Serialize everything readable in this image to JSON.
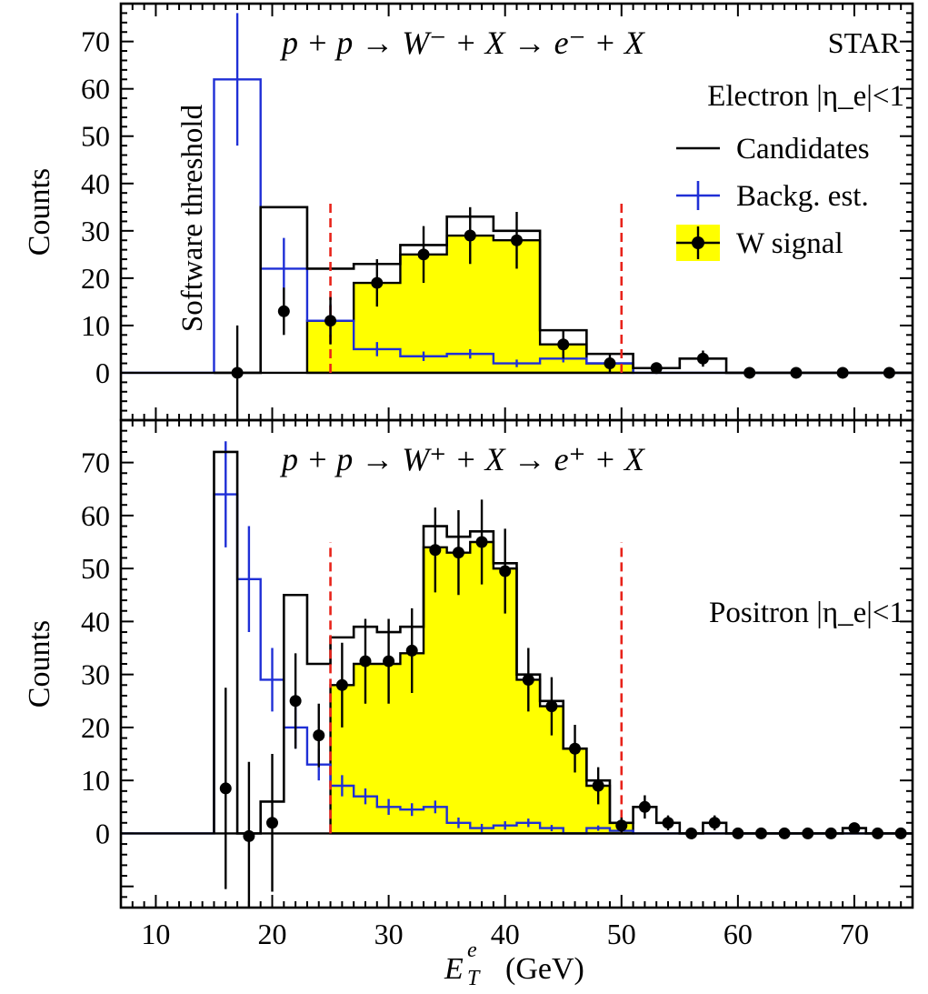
{
  "figure": {
    "xlabel_main": "E",
    "xlabel_sup": "e",
    "xlabel_sub": "T",
    "xlabel_unit": "(GeV)",
    "xticks": [
      10,
      20,
      30,
      40,
      50,
      60,
      70
    ],
    "xlim": [
      7,
      75
    ],
    "colors": {
      "candidates": "#000000",
      "background": "#1f2fd6",
      "signal_fill": "#ffff00",
      "cut_line": "#e8231a"
    },
    "cut_lines_x": [
      25,
      50
    ]
  },
  "chart_data": [
    {
      "type": "bar",
      "panel": "top",
      "process": "p + p → W⁻ + X → e⁻ + X",
      "experiment": "STAR",
      "selection": "Electron |η_e|<1",
      "ylabel": "Counts",
      "ylim": [
        -10,
        78
      ],
      "yticks": [
        0,
        10,
        20,
        30,
        40,
        50,
        60,
        70
      ],
      "vertical_label": "Software threshold",
      "legend": {
        "placement": "top-right",
        "entries": [
          {
            "key": "candidates",
            "label": "Candidates"
          },
          {
            "key": "background",
            "label": "Backg. est."
          },
          {
            "key": "signal",
            "label": "W signal"
          }
        ]
      },
      "candidates": {
        "name": "Candidates",
        "edges": [
          15,
          19,
          23,
          27,
          31,
          35,
          39,
          43,
          47,
          51,
          55,
          59,
          63,
          67,
          71,
          75
        ],
        "values": [
          0,
          35,
          22,
          23,
          27,
          33,
          30,
          9,
          4,
          1,
          3,
          0,
          0,
          0,
          0
        ]
      },
      "background": {
        "name": "Backg. est.",
        "edges": [
          15,
          19,
          23,
          27,
          31,
          35,
          39,
          43,
          47,
          51
        ],
        "values": [
          62,
          22,
          11,
          5,
          3.5,
          4,
          2,
          3,
          2
        ],
        "points": [
          {
            "x": 17,
            "y": 62,
            "err": 14
          },
          {
            "x": 21,
            "y": 22,
            "err": 6.5
          },
          {
            "x": 25,
            "y": 11,
            "err": 3.5
          },
          {
            "x": 29,
            "y": 5,
            "err": 1.5
          },
          {
            "x": 33,
            "y": 3.5,
            "err": 1
          },
          {
            "x": 37,
            "y": 4,
            "err": 1
          },
          {
            "x": 41,
            "y": 2,
            "err": 0.8
          },
          {
            "x": 45,
            "y": 3,
            "err": 0.8
          },
          {
            "x": 49,
            "y": 2,
            "err": 0.6
          }
        ]
      },
      "signal": {
        "name": "W signal",
        "edges": [
          23,
          27,
          31,
          35,
          39,
          43,
          47,
          51
        ],
        "values": [
          11,
          19,
          25,
          29,
          28,
          6,
          2
        ],
        "points": [
          {
            "x": 17,
            "y": 0,
            "err": 10
          },
          {
            "x": 21,
            "y": 13,
            "err": 5
          },
          {
            "x": 25,
            "y": 11,
            "err": 5
          },
          {
            "x": 29,
            "y": 19,
            "err": 5
          },
          {
            "x": 33,
            "y": 25,
            "err": 6
          },
          {
            "x": 37,
            "y": 29,
            "err": 6
          },
          {
            "x": 41,
            "y": 28,
            "err": 6
          },
          {
            "x": 45,
            "y": 6,
            "err": 3
          },
          {
            "x": 49,
            "y": 2,
            "err": 2
          },
          {
            "x": 53,
            "y": 1,
            "err": 1
          },
          {
            "x": 57,
            "y": 3,
            "err": 1.7
          },
          {
            "x": 61,
            "y": 0,
            "err": 0
          },
          {
            "x": 65,
            "y": 0,
            "err": 0
          },
          {
            "x": 69,
            "y": 0,
            "err": 0
          },
          {
            "x": 73,
            "y": 0,
            "err": 0
          }
        ]
      }
    },
    {
      "type": "bar",
      "panel": "bottom",
      "process": "p + p → W⁺ + X → e⁺ + X",
      "experiment": "",
      "selection": "Positron |η_e|<1",
      "ylabel": "Counts",
      "ylim": [
        -14,
        78
      ],
      "yticks": [
        0,
        10,
        20,
        30,
        40,
        50,
        60,
        70
      ],
      "vertical_label": "",
      "legend": null,
      "candidates": {
        "name": "Candidates",
        "edges": [
          15,
          17,
          19,
          21,
          23,
          25,
          27,
          29,
          31,
          33,
          35,
          37,
          39,
          41,
          43,
          45,
          47,
          49,
          51,
          53,
          55,
          57,
          59,
          61,
          63,
          65,
          67,
          69,
          71,
          73,
          75
        ],
        "values": [
          72,
          0,
          6,
          45,
          32,
          37,
          39,
          38,
          39,
          58,
          56,
          57,
          51,
          30,
          25,
          16,
          10,
          2,
          5,
          2,
          0,
          2,
          0,
          0,
          0,
          0,
          0,
          1,
          0,
          0
        ]
      },
      "background": {
        "name": "Backg. est.",
        "edges": [
          15,
          17,
          19,
          21,
          23,
          25,
          27,
          29,
          31,
          33,
          35,
          37,
          39,
          41,
          43,
          45,
          47,
          49,
          51
        ],
        "values": [
          64,
          48,
          29,
          20,
          13,
          9,
          7,
          5,
          4.5,
          5,
          2,
          1,
          1.5,
          2,
          1,
          0,
          1,
          0.5
        ],
        "points": [
          {
            "x": 16,
            "y": 64,
            "err": 10
          },
          {
            "x": 18,
            "y": 48,
            "err": 10
          },
          {
            "x": 20,
            "y": 29,
            "err": 6
          },
          {
            "x": 22,
            "y": 20,
            "err": 4
          },
          {
            "x": 24,
            "y": 13,
            "err": 3
          },
          {
            "x": 26,
            "y": 9,
            "err": 2
          },
          {
            "x": 28,
            "y": 7,
            "err": 1.5
          },
          {
            "x": 30,
            "y": 5,
            "err": 1.5
          },
          {
            "x": 32,
            "y": 4.5,
            "err": 1.2
          },
          {
            "x": 34,
            "y": 5,
            "err": 1.2
          },
          {
            "x": 36,
            "y": 2,
            "err": 1
          },
          {
            "x": 38,
            "y": 1,
            "err": 0.8
          },
          {
            "x": 40,
            "y": 1.5,
            "err": 0.8
          },
          {
            "x": 42,
            "y": 2,
            "err": 0.8
          },
          {
            "x": 44,
            "y": 1,
            "err": 0.6
          },
          {
            "x": 48,
            "y": 1,
            "err": 0.5
          }
        ]
      },
      "signal": {
        "name": "W signal",
        "edges": [
          25,
          27,
          29,
          31,
          33,
          35,
          37,
          39,
          41,
          43,
          45,
          47,
          49,
          51
        ],
        "values": [
          28,
          32,
          32,
          34,
          54,
          53,
          55,
          50,
          29,
          24,
          16,
          9,
          2
        ],
        "points": [
          {
            "x": 16,
            "y": 8.5,
            "err": 19
          },
          {
            "x": 18,
            "y": -0.5,
            "err": 14
          },
          {
            "x": 20,
            "y": 2,
            "err": 13
          },
          {
            "x": 22,
            "y": 25,
            "err": 9
          },
          {
            "x": 24,
            "y": 18.5,
            "err": 6
          },
          {
            "x": 26,
            "y": 28,
            "err": 8
          },
          {
            "x": 28,
            "y": 32.5,
            "err": 8
          },
          {
            "x": 30,
            "y": 32.5,
            "err": 8
          },
          {
            "x": 32,
            "y": 34.5,
            "err": 8
          },
          {
            "x": 34,
            "y": 53.5,
            "err": 8
          },
          {
            "x": 36,
            "y": 53,
            "err": 8
          },
          {
            "x": 38,
            "y": 55,
            "err": 8
          },
          {
            "x": 40,
            "y": 49.5,
            "err": 8
          },
          {
            "x": 42,
            "y": 29,
            "err": 6
          },
          {
            "x": 44,
            "y": 24,
            "err": 5.5
          },
          {
            "x": 46,
            "y": 16,
            "err": 4.5
          },
          {
            "x": 48,
            "y": 9,
            "err": 3.5
          },
          {
            "x": 50,
            "y": 1.5,
            "err": 1.5
          },
          {
            "x": 52,
            "y": 5,
            "err": 2.2
          },
          {
            "x": 54,
            "y": 2,
            "err": 1.4
          },
          {
            "x": 56,
            "y": 0,
            "err": 0
          },
          {
            "x": 58,
            "y": 2,
            "err": 1.4
          },
          {
            "x": 60,
            "y": 0,
            "err": 0
          },
          {
            "x": 62,
            "y": 0,
            "err": 0
          },
          {
            "x": 64,
            "y": 0,
            "err": 0
          },
          {
            "x": 66,
            "y": 0,
            "err": 0
          },
          {
            "x": 68,
            "y": 0,
            "err": 0
          },
          {
            "x": 70,
            "y": 1,
            "err": 1
          },
          {
            "x": 72,
            "y": 0,
            "err": 0
          },
          {
            "x": 74,
            "y": 0,
            "err": 0
          }
        ]
      }
    }
  ]
}
